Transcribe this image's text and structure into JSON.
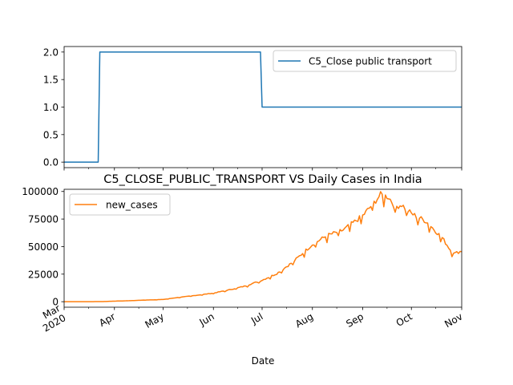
{
  "chart_data": [
    {
      "type": "line",
      "title": "",
      "xlabel": "",
      "ylabel": "",
      "ylim": [
        -0.1,
        2.1
      ],
      "yticks": [
        0.0,
        0.5,
        1.0,
        1.5,
        2.0
      ],
      "ytick_labels": [
        "0.0",
        "0.5",
        "1.0",
        "1.5",
        "2.0"
      ],
      "legend_position": "upper-right",
      "grid": false,
      "series": [
        {
          "name": "C5_Close public transport",
          "color": "#1f77b4",
          "x": [
            "2020-03-01",
            "2020-03-22",
            "2020-03-23",
            "2020-06-30",
            "2020-07-01",
            "2020-11-01"
          ],
          "values": [
            0,
            0,
            2,
            2,
            1,
            1
          ]
        }
      ]
    },
    {
      "type": "line",
      "title": "C5_CLOSE_PUBLIC_TRANSPORT VS Daily Cases in India",
      "xlabel": "Date",
      "ylabel": "",
      "ylim": [
        -5000,
        102000
      ],
      "yticks": [
        0,
        25000,
        50000,
        75000,
        100000
      ],
      "ytick_labels": [
        "0",
        "25000",
        "50000",
        "75000",
        "100000"
      ],
      "xtick_labels": [
        "Mar\n2020",
        "Apr",
        "May",
        "Jun",
        "Jul",
        "Aug",
        "Sep",
        "Oct",
        "Nov"
      ],
      "xtick_dates": [
        "2020-03-01",
        "2020-04-01",
        "2020-05-01",
        "2020-06-01",
        "2020-07-01",
        "2020-08-01",
        "2020-09-01",
        "2020-10-01",
        "2020-11-01"
      ],
      "legend_position": "upper-left",
      "grid": false,
      "series": [
        {
          "name": "new_cases",
          "color": "#ff7f0e",
          "x": [
            "2020-03-01",
            "2020-03-10",
            "2020-03-20",
            "2020-03-25",
            "2020-04-01",
            "2020-04-10",
            "2020-04-20",
            "2020-05-01",
            "2020-05-10",
            "2020-05-20",
            "2020-06-01",
            "2020-06-10",
            "2020-06-20",
            "2020-07-01",
            "2020-07-10",
            "2020-07-20",
            "2020-08-01",
            "2020-08-10",
            "2020-08-20",
            "2020-09-01",
            "2020-09-08",
            "2020-09-12",
            "2020-09-17",
            "2020-09-21",
            "2020-09-25",
            "2020-10-01",
            "2020-10-10",
            "2020-10-20",
            "2020-10-25",
            "2020-10-28",
            "2020-11-01"
          ],
          "values": [
            0,
            10,
            50,
            100,
            500,
            900,
            1500,
            2000,
            3800,
            5500,
            7800,
            10500,
            14000,
            19500,
            25500,
            36000,
            52000,
            60000,
            65000,
            78000,
            90000,
            97000,
            95000,
            86000,
            88000,
            80000,
            73000,
            58000,
            47000,
            44000,
            46000
          ]
        }
      ]
    }
  ]
}
